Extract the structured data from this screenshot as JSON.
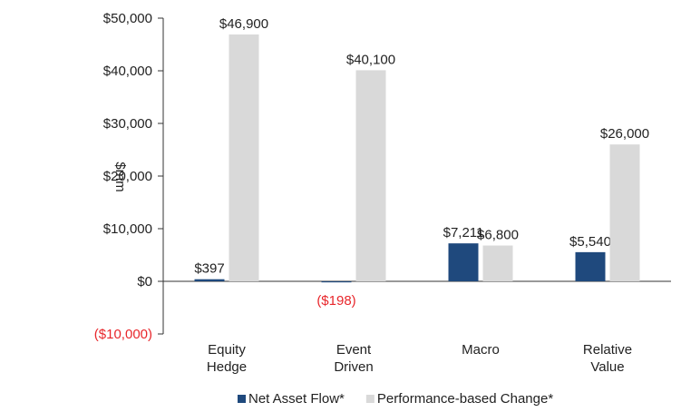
{
  "chart_data": {
    "type": "bar",
    "categories": [
      "Equity Hedge",
      "Event Driven",
      "Macro",
      "Relative Value"
    ],
    "ylabel": "$mm",
    "series": [
      {
        "name": "Net Asset Flow*",
        "color": "#1f497d",
        "values": [
          397,
          -198,
          7211,
          5540
        ],
        "value_labels": [
          "$397",
          "($198)",
          "$7,211",
          "$5,540"
        ]
      },
      {
        "name": "Performance-based Change*",
        "color": "#d9d9d9",
        "values": [
          46900,
          40100,
          6800,
          26000
        ],
        "value_labels": [
          "$46,900",
          "$40,100",
          "$6,800",
          "$26,000"
        ]
      }
    ],
    "ylim": [
      -10000,
      50000
    ],
    "yticks": [
      {
        "value": -10000,
        "label": "($10,000)"
      },
      {
        "value": 0,
        "label": "$0"
      },
      {
        "value": 10000,
        "label": "$10,000"
      },
      {
        "value": 20000,
        "label": "$20,000"
      },
      {
        "value": 30000,
        "label": "$30,000"
      },
      {
        "value": 40000,
        "label": "$40,000"
      },
      {
        "value": 50000,
        "label": "$50,000"
      }
    ],
    "negative_color": "#e8262b",
    "legend": "bottom"
  }
}
